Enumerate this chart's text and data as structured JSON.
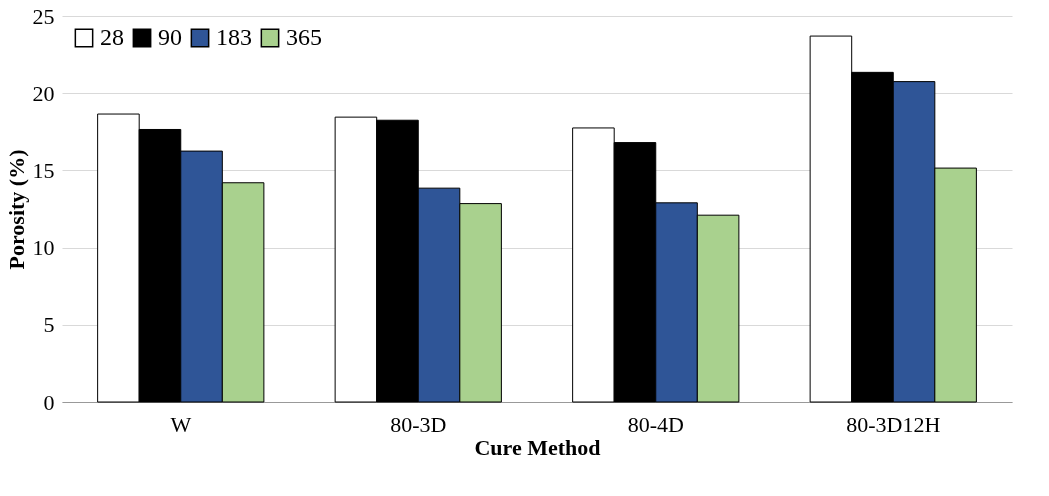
{
  "chart_data": {
    "type": "bar",
    "xlabel": "Cure Method",
    "ylabel": "Porosity (%)",
    "categories": [
      "W",
      "80-3D",
      "80-4D",
      "80-3D12H"
    ],
    "series": [
      {
        "name": "28",
        "color": "#ffffff",
        "values": [
          18.65,
          18.45,
          17.75,
          23.7
        ]
      },
      {
        "name": "90",
        "color": "#000000",
        "values": [
          17.65,
          18.25,
          16.8,
          21.35
        ]
      },
      {
        "name": "183",
        "color": "#2f5597",
        "values": [
          16.25,
          13.85,
          12.9,
          20.75
        ]
      },
      {
        "name": "365",
        "color": "#a9d18e",
        "values": [
          14.2,
          12.85,
          12.1,
          15.15
        ]
      }
    ],
    "ylim": [
      0,
      25
    ],
    "yticks": [
      0,
      5,
      10,
      15,
      20,
      25
    ],
    "grid": "y",
    "legend": "top left"
  }
}
